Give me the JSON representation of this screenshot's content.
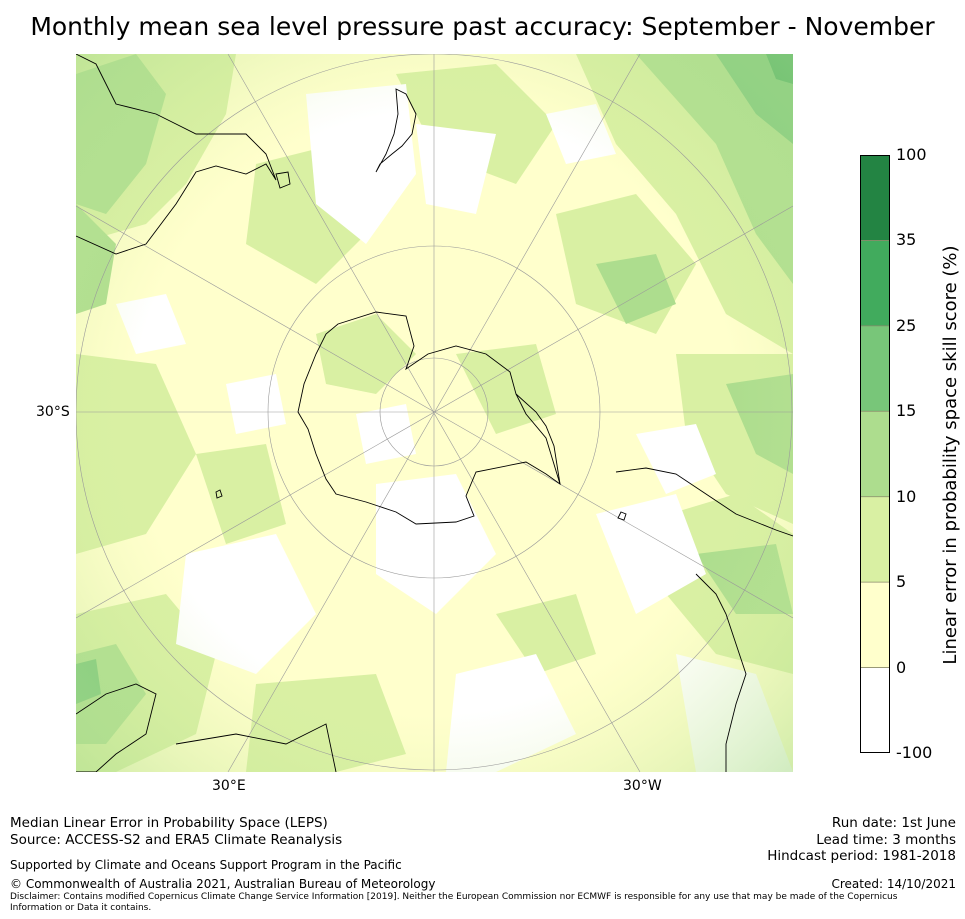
{
  "title": "Monthly mean sea level pressure past accuracy: September - November",
  "map": {
    "projection": "south polar stereographic",
    "lat_label": "30°S",
    "lon_labels": {
      "east": "30°E",
      "west": "30°W"
    },
    "colors": {
      "c0": "#ffffff",
      "c1": "#ffffcc",
      "c2": "#d9f0a3",
      "c3": "#addd8e",
      "c4": "#78c679",
      "c5": "#41ab5d",
      "c6": "#238443",
      "coast": "#000000",
      "grid": "#9a9a9a"
    }
  },
  "colorbar": {
    "label": "Linear error in probability space skill score (%)",
    "ticks": [
      "100",
      "35",
      "25",
      "15",
      "10",
      "5",
      "0",
      "-100"
    ],
    "bins": [
      {
        "from": -100,
        "to": 0,
        "color": "#ffffff"
      },
      {
        "from": 0,
        "to": 5,
        "color": "#ffffcc"
      },
      {
        "from": 5,
        "to": 10,
        "color": "#d9f0a3"
      },
      {
        "from": 10,
        "to": 15,
        "color": "#addd8e"
      },
      {
        "from": 15,
        "to": 25,
        "color": "#78c679"
      },
      {
        "from": 25,
        "to": 35,
        "color": "#41ab5d"
      },
      {
        "from": 35,
        "to": 100,
        "color": "#238443"
      }
    ]
  },
  "footer": {
    "line1": "Median Linear Error in Probability Space (LEPS)",
    "line2": "Source: ACCESS-S2 and ERA5 Climate Reanalysis",
    "support": "Supported by Climate and Oceans Support Program in the Pacific",
    "copyright": "© Commonwealth of Australia 2021, Australian Bureau of Meteorology",
    "disclaimer": "Disclaimer: Contains modified Copernicus Climate Change Service Information [2019]. Neither the European Commission nor ECMWF is responsible for any use that may be made of the Copernicus Information or Data it contains.",
    "run_date": "Run date: 1st June",
    "lead_time": "Lead time: 3 months",
    "hindcast": "Hindcast period: 1981-2018",
    "created": "Created: 14/10/2021"
  }
}
